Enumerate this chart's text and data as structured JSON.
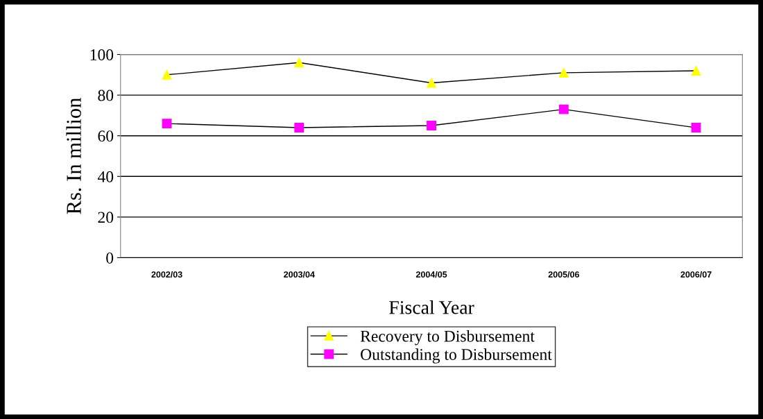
{
  "chart_data": {
    "type": "line",
    "xlabel": "Fiscal Year",
    "ylabel": "Rs. In million",
    "categories": [
      "2002/03",
      "2003/04",
      "2004/05",
      "2005/06",
      "2006/07"
    ],
    "series": [
      {
        "name": "Recovery to Disbursement",
        "color": "#ffff00",
        "marker": "triangle",
        "values": [
          90,
          96,
          86,
          91,
          92
        ]
      },
      {
        "name": "Outstanding to Disbursement",
        "color": "#ff00ff",
        "marker": "square",
        "values": [
          66,
          64,
          65,
          73,
          64
        ]
      }
    ],
    "ylim": [
      0,
      100
    ],
    "yticks": [
      0,
      20,
      40,
      60,
      80,
      100
    ],
    "grid": "y",
    "legend": "bottom",
    "line_style": "solid"
  }
}
